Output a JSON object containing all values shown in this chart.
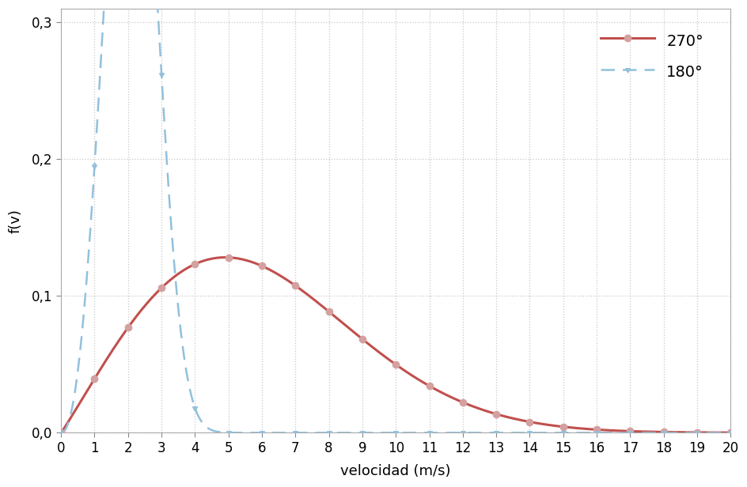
{
  "title": "",
  "xlabel": "velocidad (m/s)",
  "ylabel": "f(v)",
  "xlim": [
    0,
    20
  ],
  "ylim": [
    0,
    0.31
  ],
  "yticks": [
    0.0,
    0.1,
    0.2,
    0.3
  ],
  "ytick_labels": [
    "0,0",
    "0,1",
    "0,2",
    "0,3"
  ],
  "xticks": [
    0,
    1,
    2,
    3,
    4,
    5,
    6,
    7,
    8,
    9,
    10,
    11,
    12,
    13,
    14,
    15,
    16,
    17,
    18,
    19,
    20
  ],
  "line_270_color": "#c0504d",
  "line_270_marker_color": "#d4a0a0",
  "line_180_color": "#92c0dc",
  "line_180_marker_color": "#92c0dc",
  "legend_270": "270°",
  "legend_180": "180°",
  "weibull_270_k": 2.05,
  "weibull_270_c": 6.8,
  "weibull_180_k": 3.2,
  "weibull_180_c": 2.35,
  "grid_color": "#c8c8c8",
  "background_color": "#ffffff",
  "marker_size": 6,
  "xlabel_fontsize": 13,
  "ylabel_fontsize": 13,
  "tick_fontsize": 12,
  "legend_fontsize": 14
}
